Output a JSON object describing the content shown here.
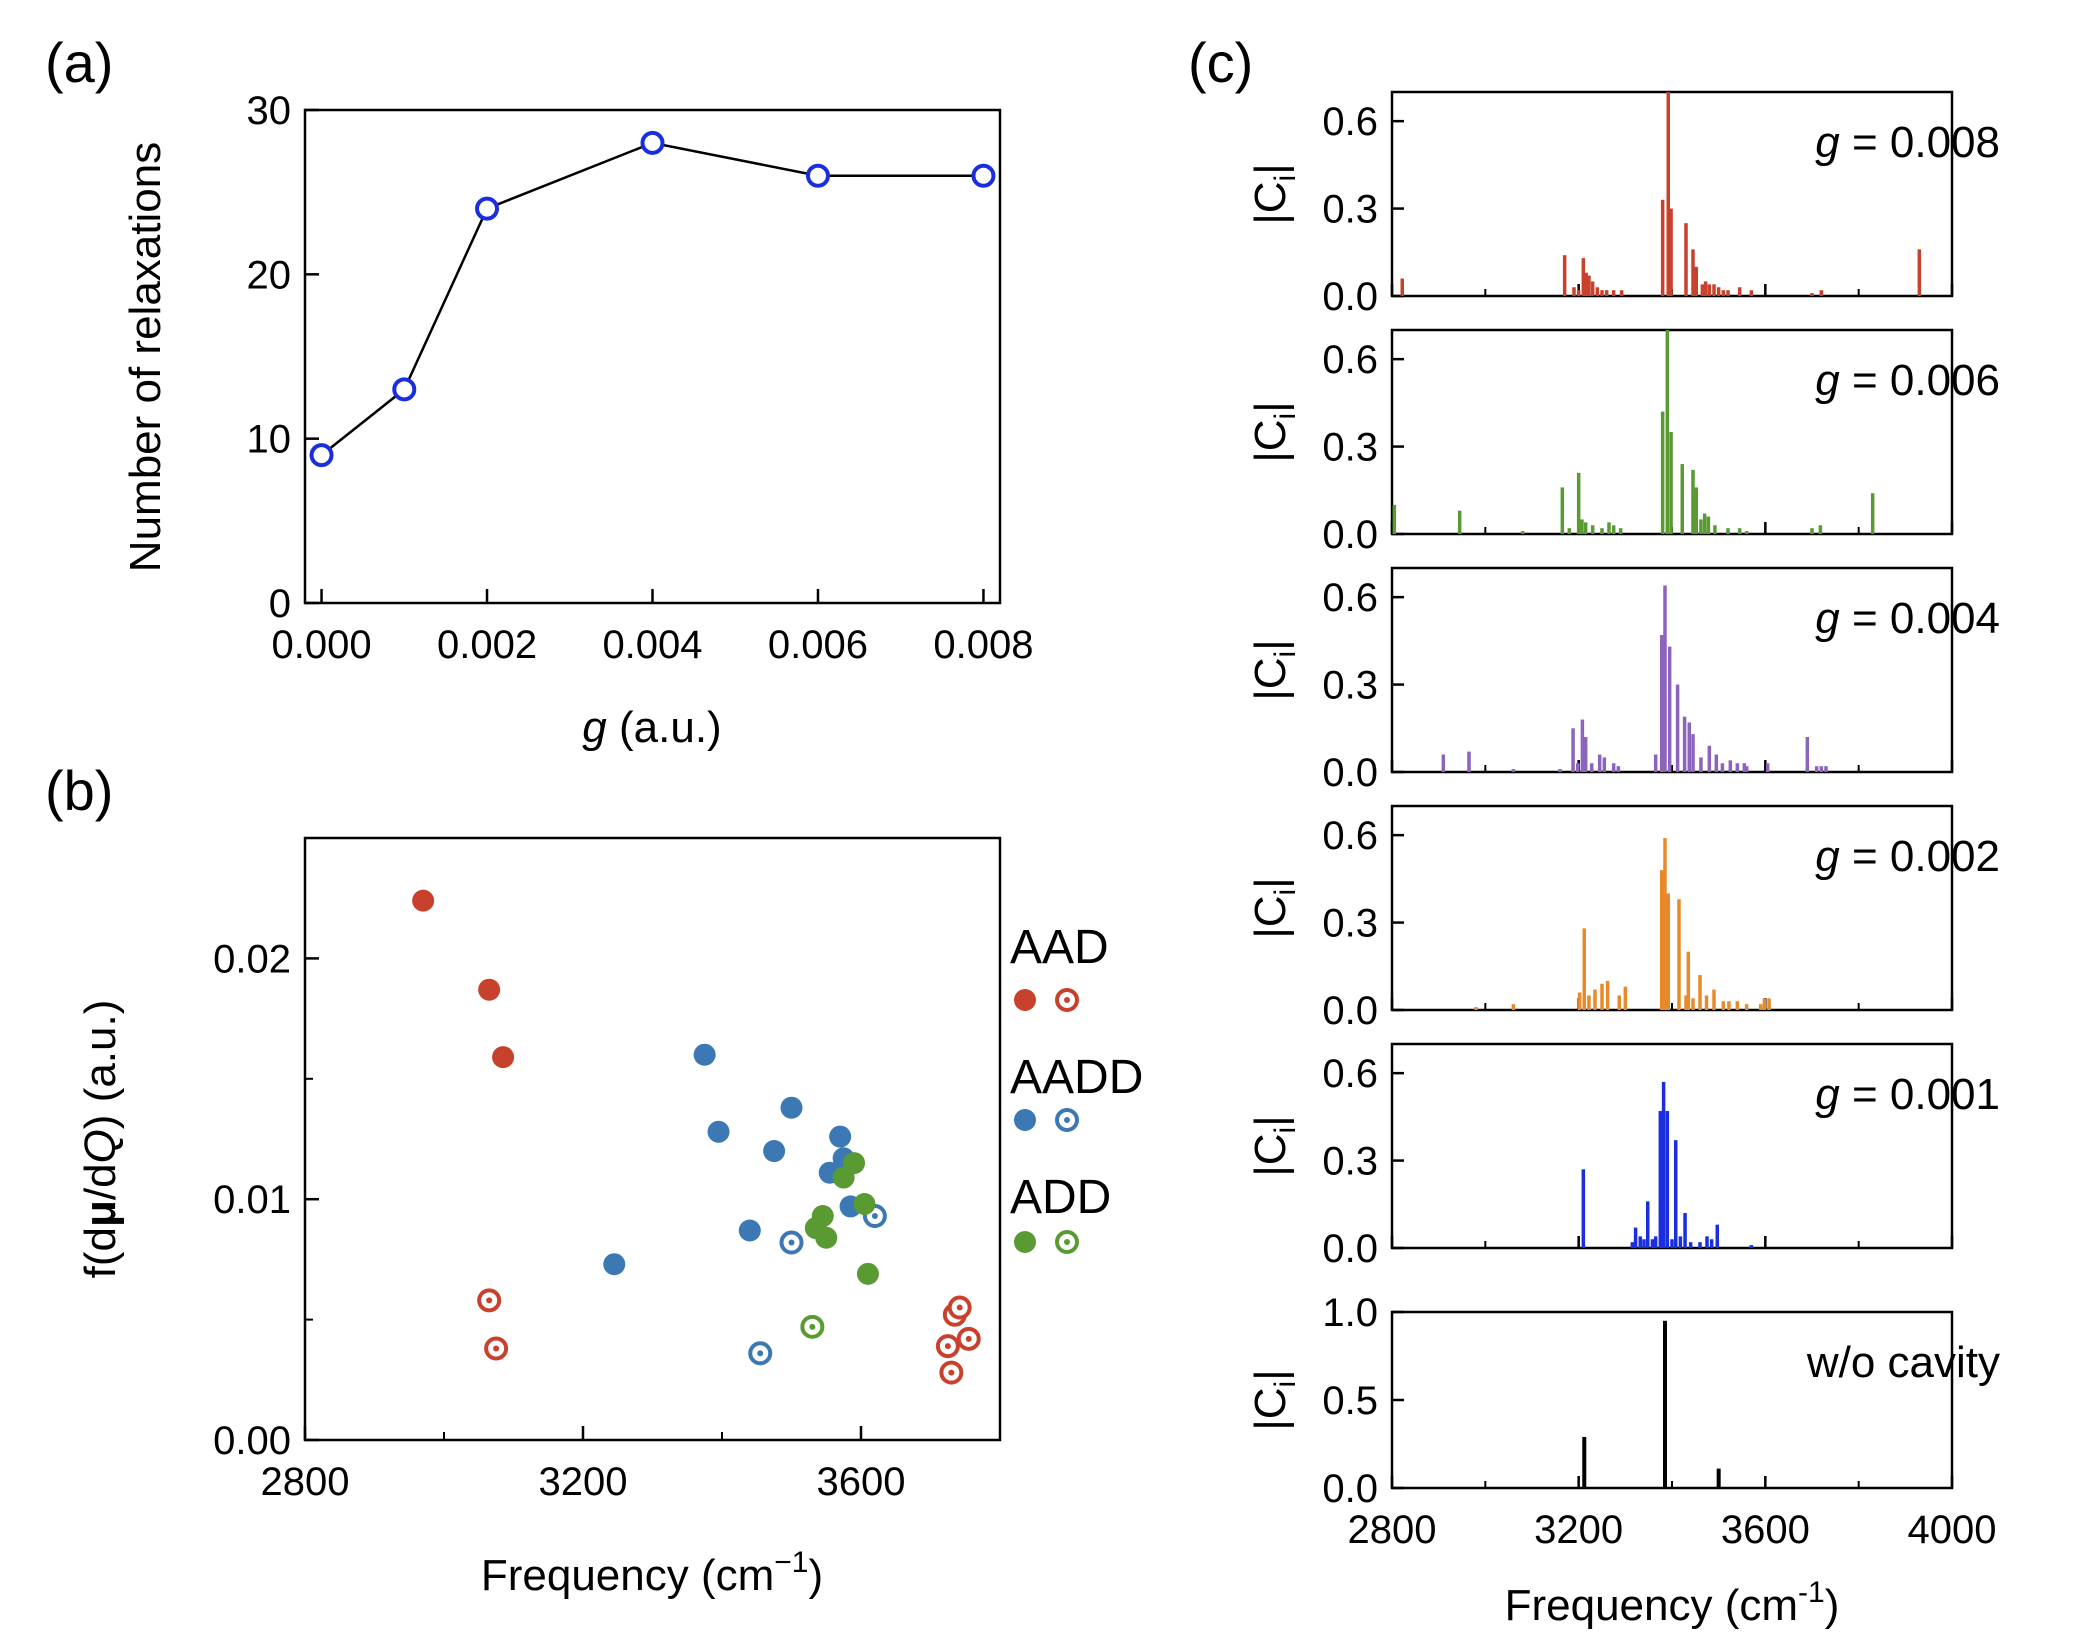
{
  "figure": {
    "panels": [
      "(a)",
      "(b)",
      "(c)"
    ]
  },
  "colors": {
    "red": "#c8412c",
    "blue": "#3c78b4",
    "green": "#5a9a32",
    "purple": "#8c64bc",
    "orange": "#e88a2a",
    "bright_blue": "#1a2ee0",
    "black": "#000000"
  },
  "chart_data": [
    {
      "id": "a",
      "panel_label": "(a)",
      "type": "line",
      "title": "",
      "xlabel_italic": "g",
      "xlabel_rest": " (a.u.)",
      "ylabel": "Number of relaxations",
      "x": [
        0.0,
        0.001,
        0.002,
        0.004,
        0.006,
        0.008
      ],
      "y": [
        9,
        13,
        24,
        28,
        26,
        26
      ],
      "xlim": [
        -0.0002,
        0.0082
      ],
      "ylim": [
        0,
        30
      ],
      "xticks": [
        0,
        0.002,
        0.004,
        0.006,
        0.008
      ],
      "xtick_labels": [
        "0.000",
        "0.002",
        "0.004",
        "0.006",
        "0.008"
      ],
      "yticks": [
        0,
        10,
        20,
        30
      ],
      "ytick_labels": [
        "0",
        "10",
        "20",
        "30"
      ],
      "marker_color": "#1a2ee0",
      "line_color": "#000000"
    },
    {
      "id": "b",
      "panel_label": "(b)",
      "type": "scatter",
      "xlabel": "Frequency (cm",
      "xlabel_sup": "−1",
      "xlabel_close": ")",
      "ylabel_pre": "f(d",
      "ylabel_bold": "μ",
      "ylabel_mid": "/d",
      "ylabel_italic": "Q",
      "ylabel_post": ") (a.u.)",
      "xlim": [
        2800,
        3800
      ],
      "ylim": [
        0,
        0.025
      ],
      "xticks": [
        2800,
        3200,
        3600
      ],
      "xtick_labels": [
        "2800",
        "3200",
        "3600"
      ],
      "yticks": [
        0,
        0.01,
        0.02
      ],
      "ytick_labels": [
        "0.00",
        "0.01",
        "0.02"
      ],
      "legend": [
        {
          "label": "AAD",
          "color": "#c8412c"
        },
        {
          "label": "AADD",
          "color": "#3c78b4"
        },
        {
          "label": "ADD",
          "color": "#5a9a32"
        }
      ],
      "series": [
        {
          "name": "AAD filled",
          "color": "#c8412c",
          "style": "filled",
          "points": [
            [
              2970,
              0.0224
            ],
            [
              3065,
              0.0187
            ],
            [
              3085,
              0.0159
            ]
          ]
        },
        {
          "name": "AAD open",
          "color": "#c8412c",
          "style": "open",
          "points": [
            [
              3065,
              0.0058
            ],
            [
              3075,
              0.0038
            ],
            [
              3735,
              0.0052
            ],
            [
              3742,
              0.0055
            ],
            [
              3755,
              0.0042
            ],
            [
              3725,
              0.0039
            ],
            [
              3730,
              0.0028
            ]
          ]
        },
        {
          "name": "AADD filled",
          "color": "#3c78b4",
          "style": "filled",
          "points": [
            [
              3375,
              0.016
            ],
            [
              3395,
              0.0128
            ],
            [
              3245,
              0.0073
            ],
            [
              3500,
              0.0138
            ],
            [
              3570,
              0.0126
            ],
            [
              3575,
              0.0117
            ],
            [
              3555,
              0.0111
            ],
            [
              3585,
              0.0097
            ],
            [
              3475,
              0.012
            ],
            [
              3440,
              0.0087
            ]
          ]
        },
        {
          "name": "AADD open",
          "color": "#3c78b4",
          "style": "open",
          "points": [
            [
              3620,
              0.0093
            ],
            [
              3500,
              0.0082
            ],
            [
              3455,
              0.0036
            ]
          ]
        },
        {
          "name": "ADD filled",
          "color": "#5a9a32",
          "style": "filled",
          "points": [
            [
              3590,
              0.0115
            ],
            [
              3575,
              0.0109
            ],
            [
              3605,
              0.0098
            ],
            [
              3545,
              0.0093
            ],
            [
              3535,
              0.0088
            ],
            [
              3550,
              0.0084
            ],
            [
              3610,
              0.0069
            ]
          ]
        },
        {
          "name": "ADD open",
          "color": "#5a9a32",
          "style": "open",
          "points": [
            [
              3530,
              0.0047
            ]
          ]
        }
      ]
    },
    {
      "id": "c",
      "panel_label": "(c)",
      "type": "bar",
      "xlabel": "Frequency (cm",
      "xlabel_sup": "-1",
      "xlabel_close": ")",
      "ylabel": "|C",
      "ylabel_sub": "i",
      "ylabel_close": "|",
      "xlim": [
        2800,
        4000
      ],
      "xticks": [
        2800,
        3200,
        3600,
        4000
      ],
      "xtick_labels": [
        "2800",
        "3200",
        "3600",
        "4000"
      ],
      "subplots": [
        {
          "label_italic": "g",
          "label_rest": " = 0.008",
          "color": "#c8412c",
          "ylim": [
            0,
            0.7
          ],
          "yticks": [
            0,
            0.3,
            0.6
          ],
          "ytick_labels": [
            "0.0",
            "0.3",
            "0.6"
          ],
          "bars": [
            [
              2822,
              0.06
            ],
            [
              3170,
              0.14
            ],
            [
              3190,
              0.03
            ],
            [
              3200,
              0.02
            ],
            [
              3210,
              0.13
            ],
            [
              3216,
              0.08
            ],
            [
              3222,
              0.07
            ],
            [
              3230,
              0.05
            ],
            [
              3240,
              0.03
            ],
            [
              3250,
              0.02
            ],
            [
              3260,
              0.02
            ],
            [
              3275,
              0.02
            ],
            [
              3292,
              0.02
            ],
            [
              3380,
              0.33
            ],
            [
              3392,
              0.7
            ],
            [
              3398,
              0.3
            ],
            [
              3430,
              0.25
            ],
            [
              3445,
              0.16
            ],
            [
              3452,
              0.1
            ],
            [
              3465,
              0.04
            ],
            [
              3472,
              0.05
            ],
            [
              3480,
              0.04
            ],
            [
              3490,
              0.04
            ],
            [
              3500,
              0.03
            ],
            [
              3510,
              0.02
            ],
            [
              3520,
              0.02
            ],
            [
              3545,
              0.03
            ],
            [
              3570,
              0.02
            ],
            [
              3700,
              0.01
            ],
            [
              3720,
              0.02
            ],
            [
              3930,
              0.16
            ]
          ]
        },
        {
          "label_italic": "g",
          "label_rest": " = 0.006",
          "color": "#5a9a32",
          "ylim": [
            0,
            0.7
          ],
          "yticks": [
            0,
            0.3,
            0.6
          ],
          "ytick_labels": [
            "0.0",
            "0.3",
            "0.6"
          ],
          "bars": [
            [
              2805,
              0.1
            ],
            [
              2945,
              0.08
            ],
            [
              3080,
              0.01
            ],
            [
              3165,
              0.16
            ],
            [
              3180,
              0.02
            ],
            [
              3200,
              0.21
            ],
            [
              3207,
              0.05
            ],
            [
              3215,
              0.04
            ],
            [
              3230,
              0.03
            ],
            [
              3250,
              0.02
            ],
            [
              3265,
              0.04
            ],
            [
              3275,
              0.03
            ],
            [
              3290,
              0.02
            ],
            [
              3380,
              0.42
            ],
            [
              3390,
              0.7
            ],
            [
              3398,
              0.35
            ],
            [
              3422,
              0.24
            ],
            [
              3445,
              0.22
            ],
            [
              3452,
              0.16
            ],
            [
              3462,
              0.05
            ],
            [
              3470,
              0.07
            ],
            [
              3478,
              0.06
            ],
            [
              3492,
              0.03
            ],
            [
              3520,
              0.02
            ],
            [
              3545,
              0.02
            ],
            [
              3560,
              0.01
            ],
            [
              3700,
              0.02
            ],
            [
              3718,
              0.03
            ],
            [
              3830,
              0.14
            ]
          ]
        },
        {
          "label_italic": "g",
          "label_rest": " = 0.004",
          "color": "#8c64bc",
          "ylim": [
            0,
            0.7
          ],
          "yticks": [
            0,
            0.3,
            0.6
          ],
          "ytick_labels": [
            "0.0",
            "0.3",
            "0.6"
          ],
          "bars": [
            [
              2910,
              0.06
            ],
            [
              2965,
              0.07
            ],
            [
              3060,
              0.01
            ],
            [
              3160,
              0.01
            ],
            [
              3188,
              0.15
            ],
            [
              3198,
              0.03
            ],
            [
              3208,
              0.18
            ],
            [
              3215,
              0.12
            ],
            [
              3228,
              0.03
            ],
            [
              3245,
              0.06
            ],
            [
              3255,
              0.05
            ],
            [
              3275,
              0.03
            ],
            [
              3285,
              0.02
            ],
            [
              3365,
              0.06
            ],
            [
              3378,
              0.47
            ],
            [
              3385,
              0.64
            ],
            [
              3395,
              0.43
            ],
            [
              3412,
              0.3
            ],
            [
              3427,
              0.19
            ],
            [
              3437,
              0.17
            ],
            [
              3445,
              0.13
            ],
            [
              3462,
              0.05
            ],
            [
              3480,
              0.09
            ],
            [
              3495,
              0.06
            ],
            [
              3508,
              0.03
            ],
            [
              3525,
              0.04
            ],
            [
              3540,
              0.03
            ],
            [
              3555,
              0.03
            ],
            [
              3560,
              0.02
            ],
            [
              3605,
              0.03
            ],
            [
              3690,
              0.12
            ],
            [
              3710,
              0.02
            ],
            [
              3720,
              0.02
            ],
            [
              3730,
              0.02
            ]
          ]
        },
        {
          "label_italic": "g",
          "label_rest": " = 0.002",
          "color": "#e88a2a",
          "ylim": [
            0,
            0.7
          ],
          "yticks": [
            0,
            0.3,
            0.6
          ],
          "ytick_labels": [
            "0.0",
            "0.3",
            "0.6"
          ],
          "bars": [
            [
              2980,
              0.01
            ],
            [
              3060,
              0.02
            ],
            [
              3202,
              0.06
            ],
            [
              3212,
              0.28
            ],
            [
              3222,
              0.05
            ],
            [
              3235,
              0.07
            ],
            [
              3250,
              0.09
            ],
            [
              3262,
              0.1
            ],
            [
              3287,
              0.05
            ],
            [
              3300,
              0.08
            ],
            [
              3378,
              0.48
            ],
            [
              3385,
              0.59
            ],
            [
              3392,
              0.4
            ],
            [
              3415,
              0.38
            ],
            [
              3430,
              0.05
            ],
            [
              3435,
              0.2
            ],
            [
              3445,
              0.04
            ],
            [
              3460,
              0.12
            ],
            [
              3474,
              0.05
            ],
            [
              3490,
              0.07
            ],
            [
              3510,
              0.03
            ],
            [
              3522,
              0.03
            ],
            [
              3540,
              0.03
            ],
            [
              3560,
              0.02
            ],
            [
              3590,
              0.02
            ],
            [
              3598,
              0.04
            ],
            [
              3608,
              0.04
            ]
          ]
        },
        {
          "label_italic": "g",
          "label_rest": " = 0.001",
          "color": "#1a2ee0",
          "ylim": [
            0,
            0.7
          ],
          "yticks": [
            0,
            0.3,
            0.6
          ],
          "ytick_labels": [
            "0.0",
            "0.3",
            "0.6"
          ],
          "bars": [
            [
              3210,
              0.27
            ],
            [
              3315,
              0.02
            ],
            [
              3322,
              0.07
            ],
            [
              3332,
              0.04
            ],
            [
              3340,
              0.03
            ],
            [
              3348,
              0.16
            ],
            [
              3358,
              0.03
            ],
            [
              3365,
              0.04
            ],
            [
              3375,
              0.47
            ],
            [
              3382,
              0.57
            ],
            [
              3390,
              0.47
            ],
            [
              3400,
              0.03
            ],
            [
              3408,
              0.37
            ],
            [
              3418,
              0.04
            ],
            [
              3428,
              0.12
            ],
            [
              3440,
              0.02
            ],
            [
              3460,
              0.02
            ],
            [
              3475,
              0.04
            ],
            [
              3485,
              0.03
            ],
            [
              3497,
              0.08
            ],
            [
              3570,
              0.01
            ]
          ]
        },
        {
          "label_italic": "",
          "label_rest": "w/o cavity",
          "color": "#000000",
          "ylim": [
            0,
            1.0
          ],
          "yticks": [
            0,
            0.5,
            1.0
          ],
          "ytick_labels": [
            "0.0",
            "0.5",
            "1.0"
          ],
          "bars": [
            [
              3212,
              0.29
            ],
            [
              3385,
              0.95
            ],
            [
              3500,
              0.11
            ]
          ]
        }
      ]
    }
  ]
}
